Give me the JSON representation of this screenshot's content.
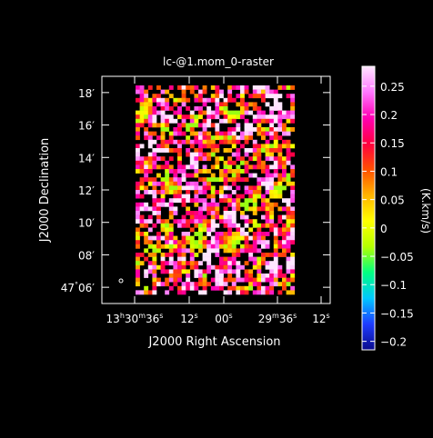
{
  "chart_data": {
    "type": "heatmap",
    "title": "lc-@1.mom_0-raster",
    "xlabel": "J2000 Right Ascension",
    "ylabel": "J2000 Declination",
    "colorbar_label": "(K.km/s)",
    "x_ticks": [
      {
        "h": "13",
        "m": "30",
        "s": "36"
      },
      {
        "h": "",
        "m": "",
        "s": "12"
      },
      {
        "h": "",
        "m": "",
        "s": "00"
      },
      {
        "h": "",
        "m": "29",
        "s": "36"
      },
      {
        "h": "",
        "m": "",
        "s": "12"
      }
    ],
    "y_ticks": [
      {
        "deg": "47",
        "min": "06"
      },
      {
        "deg": "",
        "min": "08"
      },
      {
        "deg": "",
        "min": "10"
      },
      {
        "deg": "",
        "min": "12"
      },
      {
        "deg": "",
        "min": "14"
      },
      {
        "deg": "",
        "min": "16"
      },
      {
        "deg": "",
        "min": "18"
      }
    ],
    "y_range_arcmin": [
      5.0,
      19.0
    ],
    "colorbar_ticks": [
      "0.25",
      "0.2",
      "0.15",
      "0.1",
      "0.05",
      "0",
      "−0.05",
      "−0.1",
      "−0.15",
      "−0.2"
    ],
    "colorbar_range": [
      -0.215,
      0.285
    ],
    "colormap": [
      "#0a0a8c",
      "#1e3cff",
      "#00c8ff",
      "#00ff80",
      "#b4ff00",
      "#ffff00",
      "#ffb400",
      "#ff5000",
      "#ff0040",
      "#ff00b4",
      "#ff78ff",
      "#ffe6ff"
    ],
    "grid": false,
    "legend": "colorbar-right",
    "beam_marker": "ellipse bottom-left",
    "background": "#000000",
    "foreground": "#ffffff"
  }
}
